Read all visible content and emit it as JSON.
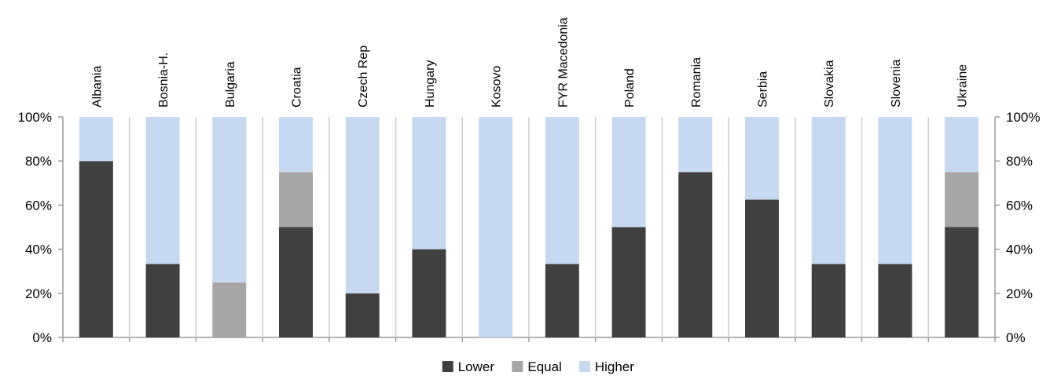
{
  "chart_data": {
    "type": "bar",
    "stacked": true,
    "percent": true,
    "categories": [
      "Albania",
      "Bosnia-H.",
      "Bulgaria",
      "Croatia",
      "Czech Rep",
      "Hungary",
      "Kosovo",
      "FYR Macedonia",
      "Poland",
      "Romania",
      "Serbia",
      "Slovakia",
      "Slovenia",
      "Ukraine"
    ],
    "series": [
      {
        "name": "Lower",
        "color": "#404040",
        "values": [
          80,
          33.3,
          0,
          50,
          20,
          40,
          0,
          33.3,
          50,
          75,
          62.5,
          33.3,
          33.3,
          50
        ]
      },
      {
        "name": "Equal",
        "color": "#a6a6a6",
        "values": [
          0,
          0,
          25,
          25,
          0,
          0,
          0,
          0,
          0,
          0,
          0,
          0,
          0,
          25
        ]
      },
      {
        "name": "Higher",
        "color": "#c6d9f1",
        "values": [
          20,
          66.7,
          75,
          25,
          80,
          60,
          100,
          66.7,
          50,
          25,
          37.5,
          66.7,
          66.7,
          25
        ]
      }
    ],
    "ylim": [
      0,
      100
    ],
    "yticks": [
      "0%",
      "20%",
      "40%",
      "60%",
      "80%",
      "100%"
    ],
    "secondary_axis": true,
    "legend_position": "bottom",
    "category_label_orientation": "vertical",
    "grid": false
  }
}
